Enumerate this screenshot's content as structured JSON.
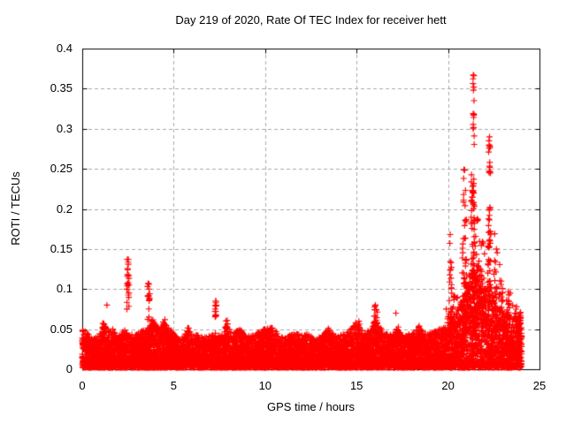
{
  "chart_data": {
    "type": "scatter",
    "title": "Day 219 of 2020, Rate Of TEC Index for receiver hett",
    "xlabel": "GPS time / hours",
    "ylabel": "ROTI / TECUs",
    "xlim": [
      0,
      25
    ],
    "ylim": [
      0,
      0.4
    ],
    "x_ticks": {
      "values": [
        0,
        5,
        10,
        15,
        20,
        25
      ],
      "labels": [
        "0",
        "5",
        "10",
        "15",
        "20",
        "25"
      ]
    },
    "y_ticks": {
      "values": [
        0,
        0.05,
        0.1,
        0.15,
        0.2,
        0.25,
        0.3,
        0.35,
        0.4
      ],
      "labels": [
        "0",
        "0.05",
        "0.1",
        "0.15",
        "0.2",
        "0.25",
        "0.3",
        "0.35",
        "0.4"
      ]
    },
    "grid": {
      "shown": true,
      "style": "dashed",
      "color": "#a8a8a8"
    },
    "legend": "none",
    "background": "#ffffff",
    "border_color": "#000000",
    "text_color": "#000000",
    "marker": {
      "shape": "plus",
      "color": "#ff0000",
      "size": 7
    },
    "series_name": "ROTI",
    "data_hours_range": [
      0,
      24
    ],
    "peak_value": 0.367,
    "peak_hour": 21.4,
    "scatter_model": {
      "comment": "Dense + scatter. envelope=[hour, top-of-dense-band TECU]; clusters=[hour, halfwidth, ymin, ymax, n]; outliers=[hour, value]",
      "n_base": 9200,
      "t_max": 24.03,
      "baseline_min": 0.002,
      "density_power": 1.7,
      "seed": 1337,
      "envelope": [
        [
          0,
          0.05
        ],
        [
          0.3,
          0.045
        ],
        [
          0.6,
          0.038
        ],
        [
          0.9,
          0.042
        ],
        [
          1.2,
          0.058
        ],
        [
          1.5,
          0.046
        ],
        [
          1.7,
          0.052
        ],
        [
          1.9,
          0.04
        ],
        [
          2.1,
          0.044
        ],
        [
          2.4,
          0.052
        ],
        [
          2.7,
          0.047
        ],
        [
          3.0,
          0.044
        ],
        [
          3.3,
          0.05
        ],
        [
          3.6,
          0.056
        ],
        [
          3.9,
          0.06
        ],
        [
          4.2,
          0.05
        ],
        [
          4.5,
          0.058
        ],
        [
          4.8,
          0.05
        ],
        [
          5.0,
          0.045
        ],
        [
          5.3,
          0.036
        ],
        [
          5.6,
          0.044
        ],
        [
          5.8,
          0.052
        ],
        [
          6.0,
          0.042
        ],
        [
          6.4,
          0.044
        ],
        [
          6.8,
          0.04
        ],
        [
          7.2,
          0.046
        ],
        [
          7.6,
          0.041
        ],
        [
          7.9,
          0.058
        ],
        [
          8.2,
          0.046
        ],
        [
          8.6,
          0.05
        ],
        [
          9.0,
          0.042
        ],
        [
          9.4,
          0.044
        ],
        [
          9.9,
          0.05
        ],
        [
          10.4,
          0.052
        ],
        [
          10.8,
          0.043
        ],
        [
          11.2,
          0.04
        ],
        [
          11.6,
          0.046
        ],
        [
          12.0,
          0.042
        ],
        [
          12.3,
          0.046
        ],
        [
          12.7,
          0.038
        ],
        [
          13.1,
          0.042
        ],
        [
          13.5,
          0.052
        ],
        [
          13.9,
          0.04
        ],
        [
          14.3,
          0.044
        ],
        [
          14.7,
          0.05
        ],
        [
          15.0,
          0.058
        ],
        [
          15.4,
          0.045
        ],
        [
          15.8,
          0.052
        ],
        [
          16.1,
          0.064
        ],
        [
          16.4,
          0.048
        ],
        [
          16.8,
          0.042
        ],
        [
          17.2,
          0.05
        ],
        [
          17.6,
          0.042
        ],
        [
          18.0,
          0.045
        ],
        [
          18.4,
          0.052
        ],
        [
          19.0,
          0.044
        ],
        [
          19.4,
          0.049
        ],
        [
          19.8,
          0.052
        ],
        [
          20.1,
          0.075
        ],
        [
          20.4,
          0.068
        ],
        [
          20.7,
          0.085
        ],
        [
          21.0,
          0.105
        ],
        [
          21.3,
          0.125
        ],
        [
          21.6,
          0.115
        ],
        [
          21.9,
          0.098
        ],
        [
          22.2,
          0.115
        ],
        [
          22.5,
          0.092
        ],
        [
          22.8,
          0.082
        ],
        [
          23.1,
          0.072
        ],
        [
          23.4,
          0.066
        ],
        [
          23.7,
          0.068
        ],
        [
          24.03,
          0.058
        ]
      ],
      "clusters": [
        [
          0.05,
          0.06,
          0.03,
          0.048,
          6
        ],
        [
          1.2,
          0.1,
          0.045,
          0.062,
          8
        ],
        [
          2.5,
          0.07,
          0.098,
          0.138,
          12
        ],
        [
          2.5,
          0.06,
          0.075,
          0.098,
          6
        ],
        [
          3.63,
          0.06,
          0.055,
          0.107,
          12
        ],
        [
          3.9,
          0.12,
          0.048,
          0.07,
          10
        ],
        [
          4.5,
          0.08,
          0.048,
          0.066,
          8
        ],
        [
          5.8,
          0.05,
          0.042,
          0.054,
          5
        ],
        [
          7.3,
          0.04,
          0.064,
          0.086,
          10
        ],
        [
          7.9,
          0.05,
          0.046,
          0.062,
          7
        ],
        [
          8.6,
          0.08,
          0.04,
          0.051,
          6
        ],
        [
          9.9,
          0.06,
          0.04,
          0.052,
          5
        ],
        [
          10.35,
          0.12,
          0.04,
          0.054,
          8
        ],
        [
          13.5,
          0.08,
          0.04,
          0.053,
          6
        ],
        [
          15.05,
          0.12,
          0.042,
          0.06,
          10
        ],
        [
          16.05,
          0.09,
          0.048,
          0.08,
          16
        ],
        [
          17.25,
          0.08,
          0.04,
          0.055,
          6
        ],
        [
          18.45,
          0.1,
          0.04,
          0.054,
          8
        ],
        [
          19.9,
          0.08,
          0.042,
          0.052,
          6
        ],
        [
          20.15,
          0.08,
          0.06,
          0.135,
          14
        ],
        [
          20.35,
          0.2,
          0.04,
          0.095,
          25
        ],
        [
          20.9,
          0.12,
          0.09,
          0.2,
          22
        ],
        [
          20.9,
          0.06,
          0.195,
          0.25,
          8
        ],
        [
          21.2,
          0.35,
          0.045,
          0.12,
          90
        ],
        [
          21.35,
          0.1,
          0.12,
          0.245,
          45
        ],
        [
          21.4,
          0.04,
          0.28,
          0.368,
          9
        ],
        [
          21.6,
          0.2,
          0.09,
          0.19,
          28
        ],
        [
          21.9,
          0.15,
          0.08,
          0.16,
          18
        ],
        [
          22.0,
          0.5,
          0.04,
          0.1,
          70
        ],
        [
          22.25,
          0.08,
          0.095,
          0.205,
          28
        ],
        [
          22.27,
          0.05,
          0.24,
          0.29,
          10
        ],
        [
          22.3,
          0.05,
          0.155,
          0.175,
          5
        ],
        [
          22.6,
          0.1,
          0.085,
          0.15,
          14
        ],
        [
          22.9,
          0.12,
          0.08,
          0.135,
          14
        ],
        [
          23.0,
          0.4,
          0.03,
          0.08,
          45
        ],
        [
          23.3,
          0.1,
          0.065,
          0.1,
          12
        ],
        [
          23.75,
          0.25,
          0.045,
          0.085,
          20
        ],
        [
          23.9,
          0.12,
          0.02,
          0.068,
          30
        ]
      ],
      "outliers": [
        [
          1.35,
          0.08
        ],
        [
          2.46,
          0.137
        ],
        [
          2.52,
          0.131
        ],
        [
          2.49,
          0.124
        ],
        [
          2.55,
          0.117
        ],
        [
          2.47,
          0.104
        ],
        [
          3.6,
          0.107
        ],
        [
          3.65,
          0.1
        ],
        [
          3.62,
          0.092
        ],
        [
          7.29,
          0.085
        ],
        [
          7.31,
          0.079
        ],
        [
          7.3,
          0.072
        ],
        [
          7.28,
          0.067
        ],
        [
          16.03,
          0.08
        ],
        [
          16.07,
          0.074
        ],
        [
          17.15,
          0.07
        ],
        [
          19.9,
          0.075
        ],
        [
          20.12,
          0.168
        ],
        [
          20.1,
          0.157
        ],
        [
          21.38,
          0.367
        ],
        [
          21.41,
          0.352
        ],
        [
          21.39,
          0.348
        ],
        [
          21.42,
          0.335
        ],
        [
          21.4,
          0.314
        ],
        [
          21.37,
          0.3
        ],
        [
          21.43,
          0.291
        ],
        [
          22.24,
          0.285
        ],
        [
          22.27,
          0.276
        ],
        [
          22.22,
          0.271
        ],
        [
          22.28,
          0.258
        ],
        [
          22.25,
          0.247
        ],
        [
          22.31,
          0.172
        ],
        [
          22.55,
          0.169
        ],
        [
          23.95,
          0.058
        ]
      ]
    }
  }
}
